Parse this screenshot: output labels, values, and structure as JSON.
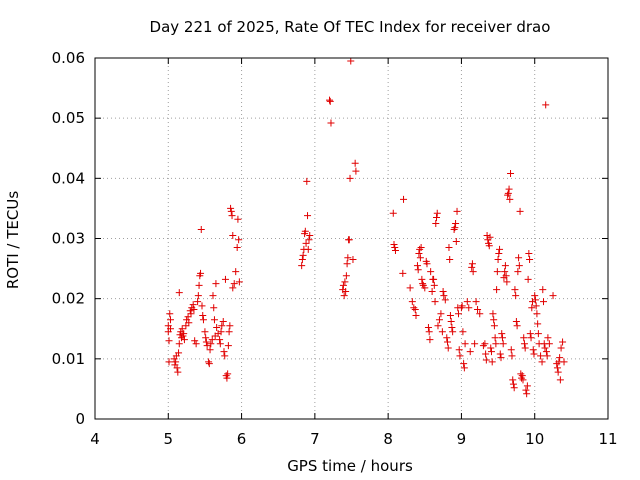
{
  "chart_data": {
    "type": "scatter",
    "title": "Day 221 of 2025, Rate Of TEC Index for receiver drao",
    "xlabel": "GPS time / hours",
    "ylabel": "ROTI / TECUs",
    "xlim": [
      4,
      11
    ],
    "ylim": [
      0,
      0.06
    ],
    "grid": true,
    "marker": "+",
    "colors": {
      "points": "#e00000",
      "grid": "#a0a0a0",
      "axes": "#000000"
    },
    "x_ticks": [
      {
        "value": 4,
        "label": "4"
      },
      {
        "value": 5,
        "label": "5"
      },
      {
        "value": 6,
        "label": "6"
      },
      {
        "value": 7,
        "label": "7"
      },
      {
        "value": 8,
        "label": "8"
      },
      {
        "value": 9,
        "label": "9"
      },
      {
        "value": 10,
        "label": "10"
      },
      {
        "value": 11,
        "label": "11"
      }
    ],
    "y_ticks": [
      {
        "value": 0,
        "label": "0"
      },
      {
        "value": 0.01,
        "label": "0.01"
      },
      {
        "value": 0.02,
        "label": "0.02"
      },
      {
        "value": 0.03,
        "label": "0.03"
      },
      {
        "value": 0.04,
        "label": "0.04"
      },
      {
        "value": 0.05,
        "label": "0.05"
      },
      {
        "value": 0.06,
        "label": "0.06"
      }
    ],
    "series": [
      {
        "name": "ROTI",
        "points": [
          [
            5.0,
            0.0155
          ],
          [
            5.0,
            0.0145
          ],
          [
            5.01,
            0.013
          ],
          [
            5.01,
            0.0095
          ],
          [
            5.02,
            0.0175
          ],
          [
            5.03,
            0.0165
          ],
          [
            5.03,
            0.015
          ],
          [
            5.08,
            0.01
          ],
          [
            5.09,
            0.009
          ],
          [
            5.1,
            0.0095
          ],
          [
            5.11,
            0.0105
          ],
          [
            5.12,
            0.0085
          ],
          [
            5.13,
            0.0078
          ],
          [
            5.14,
            0.011
          ],
          [
            5.15,
            0.0125
          ],
          [
            5.15,
            0.021
          ],
          [
            5.16,
            0.014
          ],
          [
            5.17,
            0.0145
          ],
          [
            5.18,
            0.0135
          ],
          [
            5.19,
            0.015
          ],
          [
            5.2,
            0.0138
          ],
          [
            5.21,
            0.0142
          ],
          [
            5.22,
            0.0132
          ],
          [
            5.24,
            0.0155
          ],
          [
            5.25,
            0.0165
          ],
          [
            5.27,
            0.017
          ],
          [
            5.28,
            0.016
          ],
          [
            5.3,
            0.018
          ],
          [
            5.31,
            0.0175
          ],
          [
            5.32,
            0.0185
          ],
          [
            5.34,
            0.019
          ],
          [
            5.35,
            0.0182
          ],
          [
            5.36,
            0.013
          ],
          [
            5.38,
            0.0125
          ],
          [
            5.4,
            0.0195
          ],
          [
            5.41,
            0.0205
          ],
          [
            5.42,
            0.0222
          ],
          [
            5.43,
            0.0238
          ],
          [
            5.44,
            0.0242
          ],
          [
            5.45,
            0.0315
          ],
          [
            5.46,
            0.0188
          ],
          [
            5.47,
            0.0172
          ],
          [
            5.48,
            0.0165
          ],
          [
            5.5,
            0.0145
          ],
          [
            5.51,
            0.0135
          ],
          [
            5.52,
            0.0128
          ],
          [
            5.53,
            0.0122
          ],
          [
            5.55,
            0.0095
          ],
          [
            5.56,
            0.0092
          ],
          [
            5.57,
            0.0115
          ],
          [
            5.58,
            0.0125
          ],
          [
            5.6,
            0.0132
          ],
          [
            5.61,
            0.0205
          ],
          [
            5.62,
            0.0185
          ],
          [
            5.63,
            0.0165
          ],
          [
            5.64,
            0.0138
          ],
          [
            5.65,
            0.0225
          ],
          [
            5.66,
            0.0152
          ],
          [
            5.68,
            0.0142
          ],
          [
            5.7,
            0.0132
          ],
          [
            5.71,
            0.0125
          ],
          [
            5.72,
            0.0145
          ],
          [
            5.73,
            0.0155
          ],
          [
            5.75,
            0.0162
          ],
          [
            5.76,
            0.0112
          ],
          [
            5.77,
            0.0105
          ],
          [
            5.78,
            0.0232
          ],
          [
            5.79,
            0.0072
          ],
          [
            5.8,
            0.0068
          ],
          [
            5.81,
            0.0075
          ],
          [
            5.82,
            0.0122
          ],
          [
            5.83,
            0.0145
          ],
          [
            5.84,
            0.0155
          ],
          [
            5.85,
            0.035
          ],
          [
            5.86,
            0.0345
          ],
          [
            5.87,
            0.0338
          ],
          [
            5.88,
            0.0305
          ],
          [
            5.88,
            0.0218
          ],
          [
            5.9,
            0.0225
          ],
          [
            5.92,
            0.0245
          ],
          [
            5.94,
            0.0285
          ],
          [
            5.95,
            0.0332
          ],
          [
            5.96,
            0.0298
          ],
          [
            5.97,
            0.0228
          ],
          [
            6.82,
            0.0255
          ],
          [
            6.83,
            0.0265
          ],
          [
            6.84,
            0.0272
          ],
          [
            6.85,
            0.0282
          ],
          [
            6.86,
            0.0308
          ],
          [
            6.87,
            0.0312
          ],
          [
            6.88,
            0.0292
          ],
          [
            6.89,
            0.0395
          ],
          [
            6.9,
            0.0338
          ],
          [
            6.91,
            0.0282
          ],
          [
            6.92,
            0.0298
          ],
          [
            6.93,
            0.0305
          ],
          [
            7.2,
            0.053
          ],
          [
            7.21,
            0.0528
          ],
          [
            7.22,
            0.0492
          ],
          [
            7.38,
            0.0215
          ],
          [
            7.39,
            0.0222
          ],
          [
            7.4,
            0.0205
          ],
          [
            7.41,
            0.0228
          ],
          [
            7.42,
            0.0212
          ],
          [
            7.43,
            0.0238
          ],
          [
            7.44,
            0.0258
          ],
          [
            7.45,
            0.0268
          ],
          [
            7.46,
            0.0298
          ],
          [
            7.47,
            0.0298
          ],
          [
            7.48,
            0.04
          ],
          [
            7.49,
            0.0595
          ],
          [
            7.52,
            0.0265
          ],
          [
            7.55,
            0.0425
          ],
          [
            7.56,
            0.0412
          ],
          [
            8.07,
            0.0342
          ],
          [
            8.08,
            0.029
          ],
          [
            8.09,
            0.0285
          ],
          [
            8.1,
            0.028
          ],
          [
            8.2,
            0.0242
          ],
          [
            8.21,
            0.0365
          ],
          [
            8.3,
            0.0218
          ],
          [
            8.33,
            0.0195
          ],
          [
            8.35,
            0.0185
          ],
          [
            8.37,
            0.0182
          ],
          [
            8.38,
            0.0172
          ],
          [
            8.4,
            0.0255
          ],
          [
            8.41,
            0.0248
          ],
          [
            8.42,
            0.0275
          ],
          [
            8.43,
            0.0282
          ],
          [
            8.44,
            0.0268
          ],
          [
            8.45,
            0.0285
          ],
          [
            8.46,
            0.0232
          ],
          [
            8.47,
            0.0225
          ],
          [
            8.48,
            0.0222
          ],
          [
            8.5,
            0.0218
          ],
          [
            8.52,
            0.0262
          ],
          [
            8.53,
            0.0258
          ],
          [
            8.55,
            0.0152
          ],
          [
            8.56,
            0.0145
          ],
          [
            8.57,
            0.0132
          ],
          [
            8.58,
            0.0245
          ],
          [
            8.6,
            0.0212
          ],
          [
            8.61,
            0.0232
          ],
          [
            8.62,
            0.0232
          ],
          [
            8.63,
            0.0222
          ],
          [
            8.64,
            0.0195
          ],
          [
            8.65,
            0.0325
          ],
          [
            8.66,
            0.0335
          ],
          [
            8.67,
            0.0342
          ],
          [
            8.68,
            0.0155
          ],
          [
            8.7,
            0.0165
          ],
          [
            8.72,
            0.0175
          ],
          [
            8.74,
            0.0145
          ],
          [
            8.75,
            0.0212
          ],
          [
            8.76,
            0.0205
          ],
          [
            8.78,
            0.0198
          ],
          [
            8.8,
            0.0135
          ],
          [
            8.81,
            0.0128
          ],
          [
            8.82,
            0.0118
          ],
          [
            8.83,
            0.0285
          ],
          [
            8.84,
            0.0265
          ],
          [
            8.85,
            0.0172
          ],
          [
            8.86,
            0.0162
          ],
          [
            8.87,
            0.0152
          ],
          [
            8.88,
            0.0145
          ],
          [
            8.9,
            0.0315
          ],
          [
            8.91,
            0.0318
          ],
          [
            8.92,
            0.0325
          ],
          [
            8.93,
            0.0295
          ],
          [
            8.94,
            0.0345
          ],
          [
            8.95,
            0.0185
          ],
          [
            8.96,
            0.0175
          ],
          [
            8.97,
            0.0115
          ],
          [
            8.98,
            0.0105
          ],
          [
            9.0,
            0.0185
          ],
          [
            9.01,
            0.0188
          ],
          [
            9.02,
            0.0145
          ],
          [
            9.03,
            0.0092
          ],
          [
            9.04,
            0.0085
          ],
          [
            9.05,
            0.0125
          ],
          [
            9.08,
            0.0195
          ],
          [
            9.1,
            0.0185
          ],
          [
            9.12,
            0.0112
          ],
          [
            9.14,
            0.0252
          ],
          [
            9.15,
            0.0258
          ],
          [
            9.16,
            0.0245
          ],
          [
            9.18,
            0.0125
          ],
          [
            9.2,
            0.0195
          ],
          [
            9.22,
            0.0182
          ],
          [
            9.25,
            0.0175
          ],
          [
            9.3,
            0.0122
          ],
          [
            9.32,
            0.0125
          ],
          [
            9.33,
            0.0108
          ],
          [
            9.34,
            0.0098
          ],
          [
            9.35,
            0.0305
          ],
          [
            9.36,
            0.0298
          ],
          [
            9.37,
            0.0292
          ],
          [
            9.38,
            0.0288
          ],
          [
            9.39,
            0.0302
          ],
          [
            9.4,
            0.0118
          ],
          [
            9.41,
            0.0112
          ],
          [
            9.42,
            0.0095
          ],
          [
            9.43,
            0.0175
          ],
          [
            9.44,
            0.0165
          ],
          [
            9.45,
            0.0155
          ],
          [
            9.46,
            0.0135
          ],
          [
            9.47,
            0.0125
          ],
          [
            9.48,
            0.0215
          ],
          [
            9.49,
            0.0245
          ],
          [
            9.5,
            0.0265
          ],
          [
            9.51,
            0.0275
          ],
          [
            9.52,
            0.0282
          ],
          [
            9.53,
            0.0108
          ],
          [
            9.54,
            0.0102
          ],
          [
            9.55,
            0.0142
          ],
          [
            9.56,
            0.0135
          ],
          [
            9.57,
            0.0125
          ],
          [
            9.58,
            0.0235
          ],
          [
            9.59,
            0.0245
          ],
          [
            9.6,
            0.0255
          ],
          [
            9.61,
            0.0238
          ],
          [
            9.62,
            0.0228
          ],
          [
            9.63,
            0.0372
          ],
          [
            9.64,
            0.0375
          ],
          [
            9.65,
            0.0382
          ],
          [
            9.66,
            0.0365
          ],
          [
            9.67,
            0.0408
          ],
          [
            9.68,
            0.0115
          ],
          [
            9.69,
            0.0105
          ],
          [
            9.7,
            0.0065
          ],
          [
            9.71,
            0.0058
          ],
          [
            9.72,
            0.0052
          ],
          [
            9.73,
            0.0215
          ],
          [
            9.74,
            0.0205
          ],
          [
            9.75,
            0.0162
          ],
          [
            9.76,
            0.0155
          ],
          [
            9.77,
            0.0245
          ],
          [
            9.78,
            0.0268
          ],
          [
            9.79,
            0.0255
          ],
          [
            9.8,
            0.0345
          ],
          [
            9.81,
            0.0075
          ],
          [
            9.82,
            0.0068
          ],
          [
            9.83,
            0.0072
          ],
          [
            9.84,
            0.0065
          ],
          [
            9.85,
            0.0135
          ],
          [
            9.86,
            0.0125
          ],
          [
            9.87,
            0.0118
          ],
          [
            9.88,
            0.0048
          ],
          [
            9.89,
            0.0042
          ],
          [
            9.9,
            0.0055
          ],
          [
            9.91,
            0.0232
          ],
          [
            9.92,
            0.0275
          ],
          [
            9.93,
            0.0265
          ],
          [
            9.94,
            0.0142
          ],
          [
            9.95,
            0.0135
          ],
          [
            9.96,
            0.0185
          ],
          [
            9.97,
            0.0195
          ],
          [
            9.98,
            0.0115
          ],
          [
            9.99,
            0.0108
          ],
          [
            10.0,
            0.0205
          ],
          [
            10.01,
            0.0198
          ],
          [
            10.02,
            0.0188
          ],
          [
            10.03,
            0.0175
          ],
          [
            10.04,
            0.0158
          ],
          [
            10.05,
            0.0142
          ],
          [
            10.06,
            0.0125
          ],
          [
            10.08,
            0.0105
          ],
          [
            10.1,
            0.0095
          ],
          [
            10.11,
            0.0215
          ],
          [
            10.12,
            0.0195
          ],
          [
            10.13,
            0.0125
          ],
          [
            10.14,
            0.0118
          ],
          [
            10.15,
            0.0522
          ],
          [
            10.16,
            0.0112
          ],
          [
            10.17,
            0.0105
          ],
          [
            10.18,
            0.0135
          ],
          [
            10.2,
            0.0125
          ],
          [
            10.25,
            0.0205
          ],
          [
            10.3,
            0.0092
          ],
          [
            10.31,
            0.0085
          ],
          [
            10.32,
            0.0078
          ],
          [
            10.33,
            0.0095
          ],
          [
            10.34,
            0.0102
          ],
          [
            10.35,
            0.0065
          ],
          [
            10.36,
            0.0118
          ],
          [
            10.38,
            0.0128
          ],
          [
            10.4,
            0.0095
          ]
        ]
      }
    ]
  }
}
